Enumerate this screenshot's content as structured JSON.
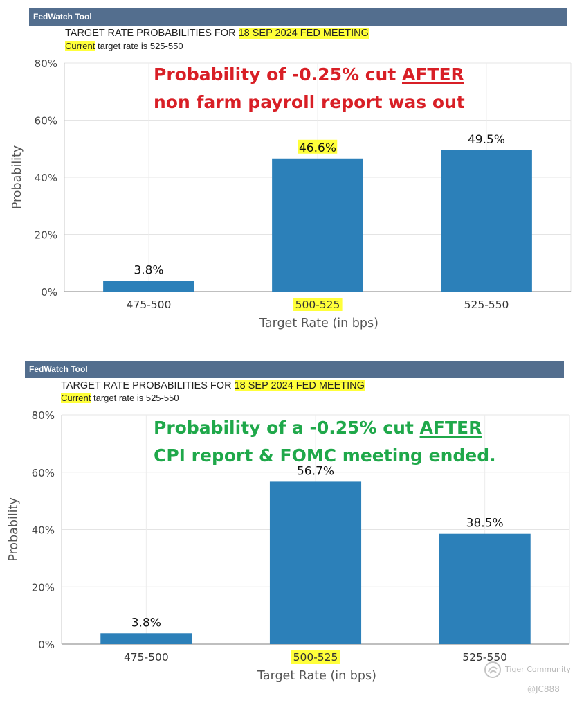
{
  "panels": [
    {
      "tool_label": "FedWatch Tool",
      "title_prefix": "TARGET RATE PROBABILITIES FOR",
      "title_highlight": "18 SEP 2024 FED MEETING",
      "current_word": "Current",
      "current_rest": "target rate is 525-550",
      "annotation_line1_prefix": "Probability of -0.25% cut ",
      "annotation_line1_emph": "AFTER",
      "annotation_line2": "non farm payroll report was out",
      "annotation_color": "#d81f26"
    },
    {
      "tool_label": "FedWatch Tool",
      "title_prefix": "TARGET RATE PROBABILITIES FOR",
      "title_highlight": "18 SEP 2024 FED MEETING",
      "current_word": "Current",
      "current_rest": "target rate is 525-550",
      "annotation_line1_prefix": "Probability of a -0.25% cut ",
      "annotation_line1_emph": "AFTER",
      "annotation_line2": "CPI report & FOMC meeting ended.",
      "annotation_color": "#1fa84a"
    }
  ],
  "chart_data": [
    {
      "type": "bar",
      "categories": [
        "475-500",
        "500-525",
        "525-550"
      ],
      "highlighted_category": "500-525",
      "values": [
        3.8,
        46.6,
        49.5
      ],
      "data_labels": [
        "3.8%",
        "46.6%",
        "49.5%"
      ],
      "highlighted_label": "46.6%",
      "ylabel": "Probability",
      "xlabel": "Target Rate (in bps)",
      "ylim": [
        0,
        80
      ],
      "yticks": [
        "0%",
        "20%",
        "40%",
        "60%",
        "80%"
      ],
      "grid": true,
      "bar_color": "#2c80b9"
    },
    {
      "type": "bar",
      "categories": [
        "475-500",
        "500-525",
        "525-550"
      ],
      "highlighted_category": "500-525",
      "values": [
        3.8,
        56.7,
        38.5
      ],
      "data_labels": [
        "3.8%",
        "56.7%",
        "38.5%"
      ],
      "highlighted_label": "",
      "ylabel": "Probability",
      "xlabel": "Target Rate (in bps)",
      "ylim": [
        0,
        80
      ],
      "yticks": [
        "0%",
        "20%",
        "40%",
        "60%",
        "80%"
      ],
      "grid": true,
      "bar_color": "#2c80b9"
    }
  ],
  "watermark": {
    "brand": "Tiger Community",
    "handle": "@JC888"
  }
}
